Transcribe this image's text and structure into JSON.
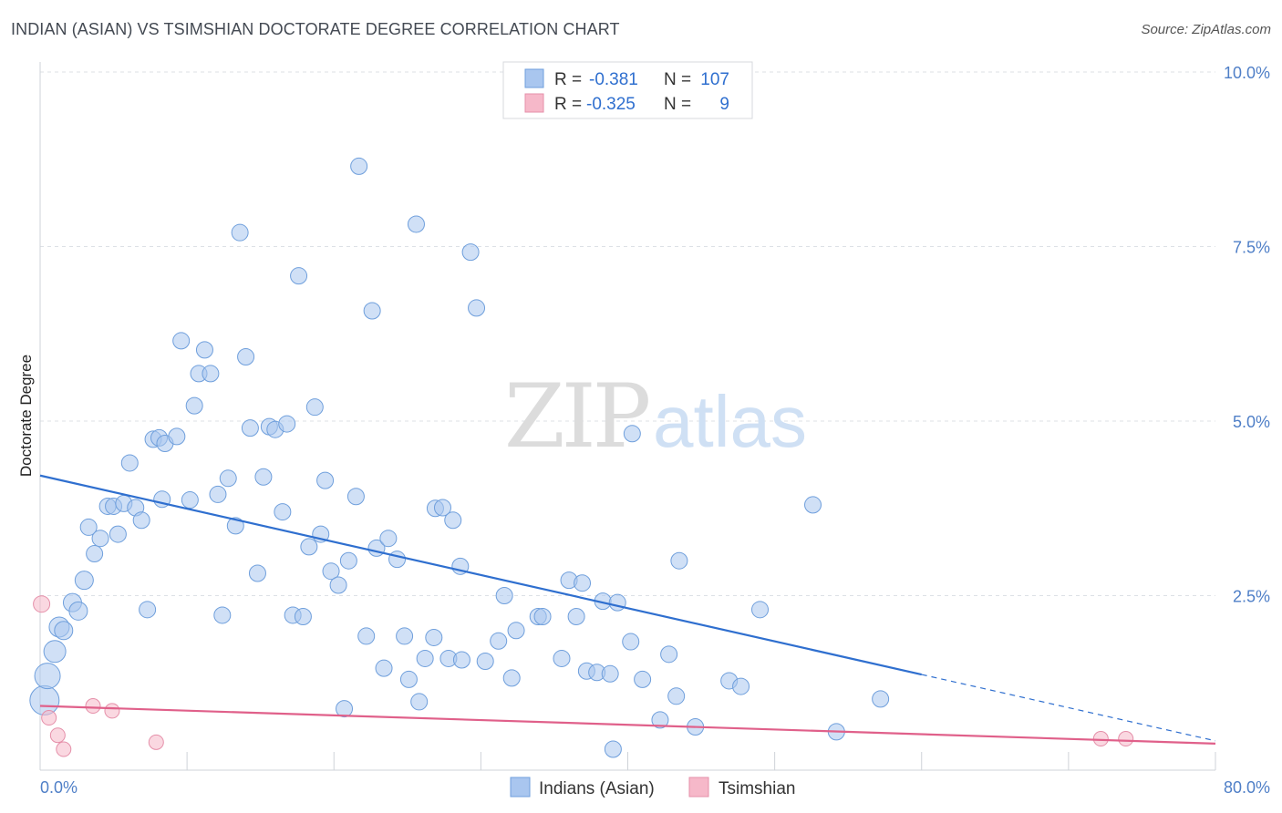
{
  "header": {
    "title": "INDIAN (ASIAN) VS TSIMSHIAN DOCTORATE DEGREE CORRELATION CHART",
    "source": "Source: ZipAtlas.com"
  },
  "watermark": {
    "zip": "ZIP",
    "atlas": "atlas"
  },
  "legend_box": {
    "rows": [
      {
        "r_label": "R = ",
        "r_value": "-0.381",
        "n_label": "N = ",
        "n_value": "107",
        "color": "#a9c6ef"
      },
      {
        "r_label": "R = ",
        "r_value": "-0.325",
        "n_label": "N = ",
        "n_value": "9",
        "color": "#f6b8c9"
      }
    ]
  },
  "bottom_legend": [
    {
      "label": "Indians (Asian)",
      "color": "#a9c6ef"
    },
    {
      "label": "Tsimshian",
      "color": "#f6b8c9"
    }
  ],
  "chart_data": {
    "type": "scatter",
    "title": "INDIAN (ASIAN) VS TSIMSHIAN DOCTORATE DEGREE CORRELATION CHART",
    "xlabel": "",
    "ylabel": "Doctorate Degree",
    "xlim": [
      0,
      80
    ],
    "ylim": [
      0,
      10
    ],
    "x_tick_labels": [
      "0.0%",
      "80.0%"
    ],
    "y_ticks": [
      2.5,
      5.0,
      7.5,
      10.0
    ],
    "y_tick_labels": [
      "2.5%",
      "5.0%",
      "7.5%",
      "10.0%"
    ],
    "grid": true,
    "series": [
      {
        "name": "Indians (Asian)",
        "color": "#a9c6ef",
        "stroke": "#6f9fdc",
        "trend": {
          "x0": 0,
          "y0": 4.22,
          "x1": 80,
          "y1": 0.42,
          "solid_until": 60
        },
        "trend_color": "#2f6fcf",
        "points": [
          [
            0.3,
            1.0,
            16
          ],
          [
            0.5,
            1.35,
            14
          ],
          [
            1.0,
            1.7,
            12
          ],
          [
            1.3,
            2.05,
            11
          ],
          [
            1.6,
            2.0,
            10
          ],
          [
            2.2,
            2.4,
            10
          ],
          [
            2.6,
            2.28,
            10
          ],
          [
            3.0,
            2.72,
            10
          ],
          [
            3.3,
            3.48,
            9
          ],
          [
            3.7,
            3.1,
            9
          ],
          [
            4.1,
            3.32,
            9
          ],
          [
            4.6,
            3.78,
            9
          ],
          [
            5.0,
            3.78,
            9
          ],
          [
            5.3,
            3.38,
            9
          ],
          [
            5.7,
            3.82,
            9
          ],
          [
            6.1,
            4.4,
            9
          ],
          [
            6.5,
            3.76,
            9
          ],
          [
            6.9,
            3.58,
            9
          ],
          [
            7.3,
            2.3,
            9
          ],
          [
            7.7,
            4.74,
            9
          ],
          [
            8.1,
            4.76,
            9
          ],
          [
            8.5,
            4.68,
            9
          ],
          [
            8.3,
            3.88,
            9
          ],
          [
            9.3,
            4.78,
            9
          ],
          [
            9.6,
            6.15,
            9
          ],
          [
            10.2,
            3.87,
            9
          ],
          [
            10.5,
            5.22,
            9
          ],
          [
            10.8,
            5.68,
            9
          ],
          [
            11.2,
            6.02,
            9
          ],
          [
            11.6,
            5.68,
            9
          ],
          [
            12.1,
            3.95,
            9
          ],
          [
            12.4,
            2.22,
            9
          ],
          [
            12.8,
            4.18,
            9
          ],
          [
            13.3,
            3.5,
            9
          ],
          [
            13.6,
            7.7,
            9
          ],
          [
            14.0,
            5.92,
            9
          ],
          [
            14.3,
            4.9,
            9
          ],
          [
            14.8,
            2.82,
            9
          ],
          [
            15.2,
            4.2,
            9
          ],
          [
            15.6,
            4.92,
            9
          ],
          [
            16.0,
            4.88,
            9
          ],
          [
            16.5,
            3.7,
            9
          ],
          [
            16.8,
            4.96,
            9
          ],
          [
            17.2,
            2.22,
            9
          ],
          [
            17.6,
            7.08,
            9
          ],
          [
            17.9,
            2.2,
            9
          ],
          [
            18.3,
            3.2,
            9
          ],
          [
            18.7,
            5.2,
            9
          ],
          [
            19.1,
            3.38,
            9
          ],
          [
            19.4,
            4.15,
            9
          ],
          [
            19.8,
            2.85,
            9
          ],
          [
            20.3,
            2.65,
            9
          ],
          [
            20.7,
            0.88,
            9
          ],
          [
            21.0,
            3.0,
            9
          ],
          [
            21.5,
            3.92,
            9
          ],
          [
            21.7,
            8.65,
            9
          ],
          [
            22.2,
            1.92,
            9
          ],
          [
            22.6,
            6.58,
            9
          ],
          [
            22.9,
            3.18,
            9
          ],
          [
            23.4,
            1.46,
            9
          ],
          [
            23.7,
            3.32,
            9
          ],
          [
            24.3,
            3.02,
            9
          ],
          [
            24.8,
            1.92,
            9
          ],
          [
            25.1,
            1.3,
            9
          ],
          [
            25.6,
            7.82,
            9
          ],
          [
            25.8,
            0.98,
            9
          ],
          [
            26.2,
            1.6,
            9
          ],
          [
            26.8,
            1.9,
            9
          ],
          [
            26.9,
            3.75,
            9
          ],
          [
            27.4,
            3.76,
            9
          ],
          [
            27.8,
            1.6,
            9
          ],
          [
            28.1,
            3.58,
            9
          ],
          [
            28.6,
            2.92,
            9
          ],
          [
            28.7,
            1.58,
            9
          ],
          [
            29.3,
            7.42,
            9
          ],
          [
            29.7,
            6.62,
            9
          ],
          [
            30.3,
            1.56,
            9
          ],
          [
            31.2,
            1.85,
            9
          ],
          [
            31.6,
            2.5,
            9
          ],
          [
            32.1,
            1.32,
            9
          ],
          [
            32.4,
            2.0,
            9
          ],
          [
            33.9,
            2.2,
            9
          ],
          [
            34.2,
            2.2,
            9
          ],
          [
            35.5,
            1.6,
            9
          ],
          [
            36.0,
            2.72,
            9
          ],
          [
            36.5,
            2.2,
            9
          ],
          [
            36.9,
            2.68,
            9
          ],
          [
            37.2,
            1.42,
            9
          ],
          [
            37.9,
            1.4,
            9
          ],
          [
            38.3,
            2.42,
            9
          ],
          [
            38.8,
            1.38,
            9
          ],
          [
            39.0,
            0.3,
            9
          ],
          [
            39.3,
            2.4,
            9
          ],
          [
            40.2,
            1.84,
            9
          ],
          [
            40.3,
            4.82,
            9
          ],
          [
            41.0,
            1.3,
            9
          ],
          [
            42.2,
            0.72,
            9
          ],
          [
            42.8,
            1.66,
            9
          ],
          [
            43.3,
            1.06,
            9
          ],
          [
            43.5,
            3.0,
            9
          ],
          [
            44.6,
            0.62,
            9
          ],
          [
            46.9,
            1.28,
            9
          ],
          [
            47.7,
            1.2,
            9
          ],
          [
            49.0,
            2.3,
            9
          ],
          [
            52.6,
            3.8,
            9
          ],
          [
            54.2,
            0.55,
            9
          ],
          [
            57.2,
            1.02,
            9
          ]
        ]
      },
      {
        "name": "Tsimshian",
        "color": "#f6b8c9",
        "stroke": "#e58fa9",
        "trend": {
          "x0": 0,
          "y0": 0.92,
          "x1": 80,
          "y1": 0.38,
          "solid_until": 80
        },
        "trend_color": "#e0608a",
        "points": [
          [
            0.1,
            2.38,
            9
          ],
          [
            0.6,
            0.75,
            8
          ],
          [
            1.2,
            0.5,
            8
          ],
          [
            1.6,
            0.3,
            8
          ],
          [
            3.6,
            0.92,
            8
          ],
          [
            4.9,
            0.85,
            8
          ],
          [
            7.9,
            0.4,
            8
          ],
          [
            72.2,
            0.45,
            8
          ],
          [
            73.9,
            0.45,
            8
          ]
        ]
      }
    ]
  }
}
